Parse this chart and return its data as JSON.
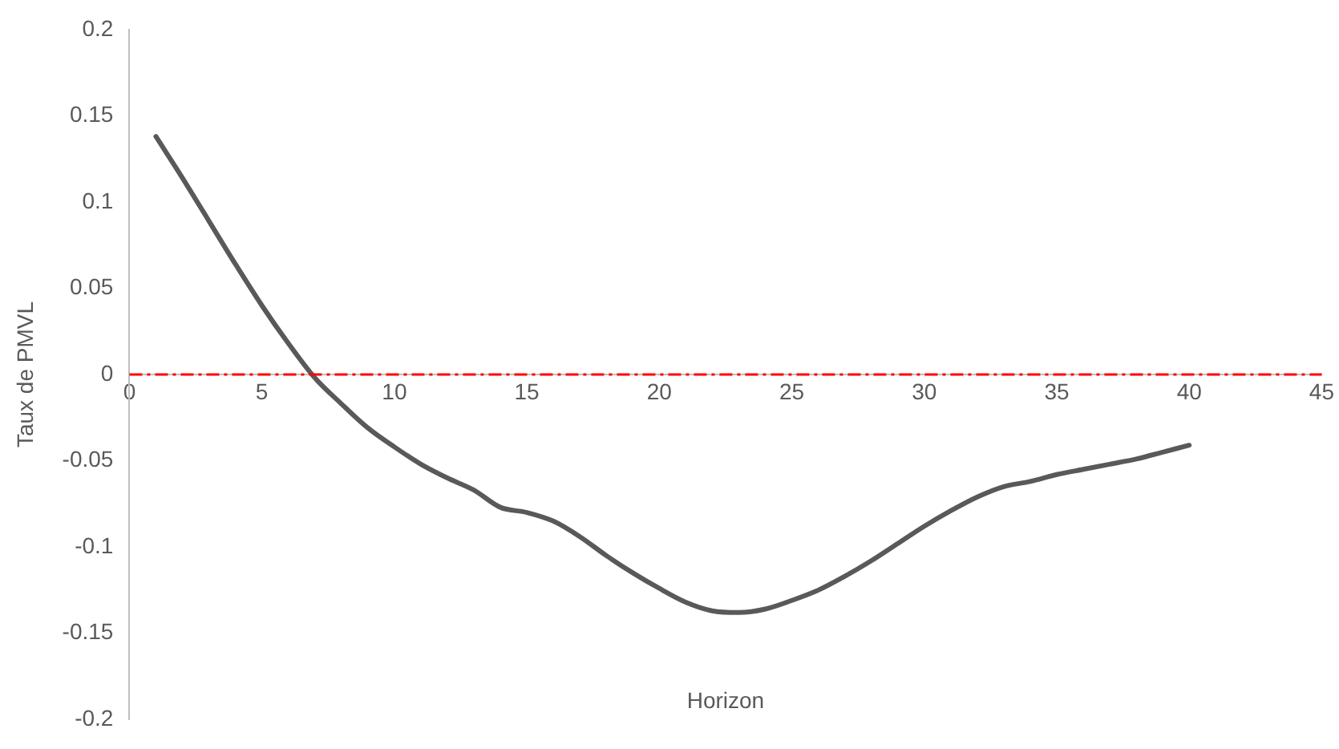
{
  "chart_data": {
    "type": "line",
    "xlabel": "Horizon",
    "ylabel": "Taux de PMVL",
    "xlim": [
      0,
      45
    ],
    "xticks": [
      0,
      5,
      10,
      15,
      20,
      25,
      30,
      35,
      40,
      45
    ],
    "ylim": [
      -0.2,
      0.2
    ],
    "yticks": [
      -0.2,
      -0.15,
      -0.1,
      -0.05,
      0,
      0.05,
      0.1,
      0.15,
      0.2
    ],
    "grid": false,
    "legend": false,
    "marker": "none",
    "line_style": "solid",
    "series": [
      {
        "color": "#595959",
        "x": [
          1,
          2,
          3,
          4,
          5,
          6,
          7,
          8,
          9,
          10,
          11,
          12,
          13,
          14,
          15,
          16,
          17,
          18,
          19,
          20,
          21,
          22,
          23,
          24,
          25,
          26,
          27,
          28,
          29,
          30,
          31,
          32,
          33,
          34,
          35,
          36,
          37,
          38,
          39,
          40
        ],
        "values": [
          0.138,
          0.114,
          0.089,
          0.064,
          0.04,
          0.018,
          -0.002,
          -0.017,
          -0.031,
          -0.042,
          -0.052,
          -0.06,
          -0.067,
          -0.077,
          -0.08,
          -0.085,
          -0.094,
          -0.105,
          -0.115,
          -0.124,
          -0.132,
          -0.137,
          -0.138,
          -0.136,
          -0.131,
          -0.125,
          -0.117,
          -0.108,
          -0.098,
          -0.088,
          -0.079,
          -0.071,
          -0.065,
          -0.062,
          -0.058,
          -0.055,
          -0.052,
          -0.049,
          -0.045,
          -0.041
        ]
      }
    ],
    "ref_lines": [
      {
        "axis": "y",
        "value": 0,
        "color": "#ff0000",
        "line_style": "dashdot"
      }
    ]
  }
}
